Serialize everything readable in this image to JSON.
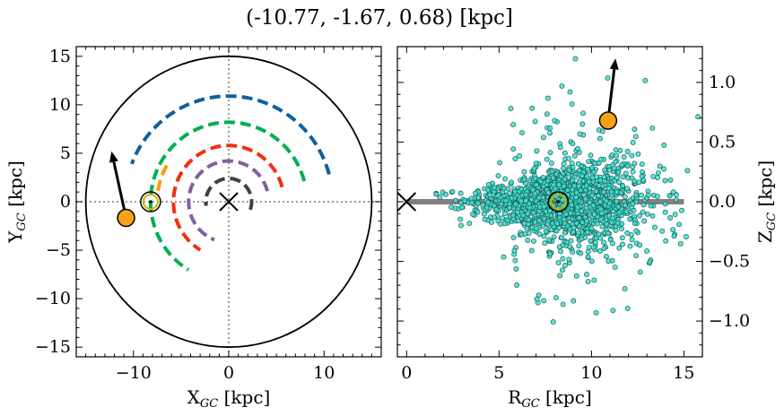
{
  "title": "(-10.77, -1.67, 0.68) [kpc]",
  "chart_data": [
    {
      "type": "scatter",
      "panel": "left",
      "xlabel_main": "X",
      "xlabel_sub": "GC",
      "xlabel_unit": " [kpc]",
      "ylabel_main": "Y",
      "ylabel_sub": "GC",
      "ylabel_unit": " [kpc]",
      "xlim": [
        -16,
        16
      ],
      "ylim": [
        -16,
        16
      ],
      "xticks": [
        -10,
        0,
        10
      ],
      "xtick_labels": [
        "−10",
        "0",
        "10"
      ],
      "yticks": [
        15,
        10,
        5,
        0,
        -5,
        -10,
        -15
      ],
      "ytick_labels": [
        "15",
        "10",
        "5",
        "0",
        "−5",
        "−10",
        "−15"
      ],
      "boundary_circle_radius": 15,
      "galactic_center": [
        0,
        0
      ],
      "sun": [
        -8.2,
        0
      ],
      "object": [
        -10.77,
        -1.67
      ],
      "velocity_arrow_tip": [
        -12.3,
        5.2
      ],
      "arms": [
        {
          "color": "#1060a0",
          "radius": 10.9,
          "angle_start": 15,
          "angle_end": 160
        },
        {
          "color": "#00b050",
          "radius": 8.2,
          "angle_start": 15,
          "angle_end": 240
        },
        {
          "color": "#f5a000",
          "radius": 7.5,
          "angle_start": 150,
          "angle_end": 175
        },
        {
          "color": "#f03010",
          "radius": 5.8,
          "angle_start": 15,
          "angle_end": 240
        },
        {
          "color": "#8060a0",
          "radius": 4.2,
          "angle_start": 15,
          "angle_end": 250
        },
        {
          "color": "#404040",
          "radius": 2.4,
          "angle_start": -20,
          "angle_end": 190
        }
      ]
    },
    {
      "type": "scatter",
      "panel": "right",
      "xlabel_main": "R",
      "xlabel_sub": "GC",
      "xlabel_unit": " [kpc]",
      "ylabel_main": "Z",
      "ylabel_sub": "GC",
      "ylabel_unit": " [kpc]",
      "xlim": [
        -0.5,
        16
      ],
      "ylim": [
        -1.3,
        1.3
      ],
      "xticks": [
        0,
        5,
        10,
        15
      ],
      "xtick_labels": [
        "0",
        "5",
        "10",
        "15"
      ],
      "yticks": [
        1.0,
        0.5,
        0.0,
        -0.5,
        -1.0
      ],
      "ytick_labels": [
        "1.0",
        "0.5",
        "0.0",
        "−0.5",
        "−1.0"
      ],
      "disk_line": {
        "x": [
          0,
          15
        ],
        "z": 0
      },
      "galactic_center": [
        0,
        0
      ],
      "sun": [
        8.2,
        0
      ],
      "object": [
        10.9,
        0.68
      ],
      "velocity_arrow_tip": [
        11.3,
        1.2
      ],
      "point_color": "#40e0d0",
      "point_count": 1500
    }
  ]
}
